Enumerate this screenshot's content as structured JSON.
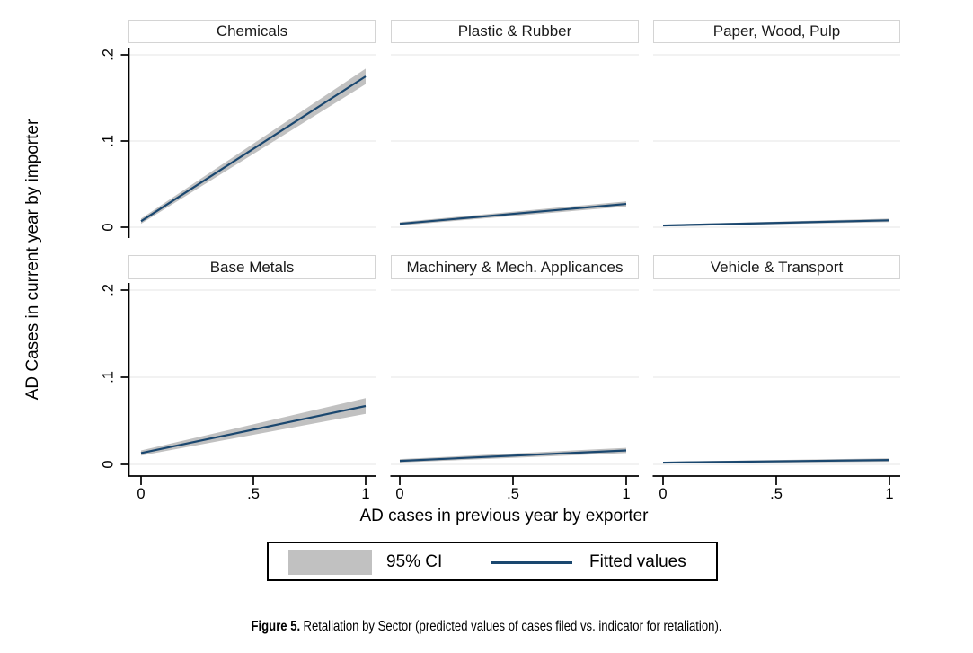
{
  "figure": {
    "ylabel": "AD Cases in current year by importer",
    "xlabel": "AD cases in previous year by exporter",
    "caption": {
      "prefix": "Figure 5.",
      "text": "Retaliation by Sector (predicted values of cases filed vs. indicator for retaliation)."
    }
  },
  "legend": {
    "ci_label": "95% CI",
    "line_label": "Fitted values"
  },
  "colors": {
    "fitted": "#1a476f",
    "ci": "#c1c1c1",
    "grid": "#e9e9e9",
    "axis": "#000000",
    "panel_border": "#d4d4d4"
  },
  "chart_data": {
    "type": "line",
    "description": "Six-panel fitted-values plot (linear fit with 95% CI band) of AD cases in current year by importer vs. AD cases in previous year by exporter, by sector",
    "x": [
      0,
      1
    ],
    "xlim": [
      0,
      1
    ],
    "ylim": [
      0,
      0.2
    ],
    "x_tick_labels": [
      "0",
      ".5",
      "1"
    ],
    "y_tick_labels": [
      ".2",
      ".1",
      "0"
    ],
    "y_tick_values": [
      0.2,
      0.1,
      0
    ],
    "grid": "horizontal-on",
    "legend_position": "bottom-center",
    "panels": [
      {
        "title": "Chemicals",
        "fit_start": 0.007,
        "fit_end": 0.175,
        "ci_start": 0.003,
        "ci_end": 0.009
      },
      {
        "title": "Plastic & Rubber",
        "fit_start": 0.004,
        "fit_end": 0.027,
        "ci_start": 0.002,
        "ci_end": 0.003
      },
      {
        "title": "Paper, Wood, Pulp",
        "fit_start": 0.002,
        "fit_end": 0.008,
        "ci_start": 0.001,
        "ci_end": 0.002
      },
      {
        "title": "Base Metals",
        "fit_start": 0.013,
        "fit_end": 0.067,
        "ci_start": 0.003,
        "ci_end": 0.009
      },
      {
        "title": "Machinery & Mech. Applicances",
        "fit_start": 0.004,
        "fit_end": 0.016,
        "ci_start": 0.002,
        "ci_end": 0.003
      },
      {
        "title": "Vehicle & Transport",
        "fit_start": 0.002,
        "fit_end": 0.005,
        "ci_start": 0.001,
        "ci_end": 0.002
      }
    ]
  }
}
